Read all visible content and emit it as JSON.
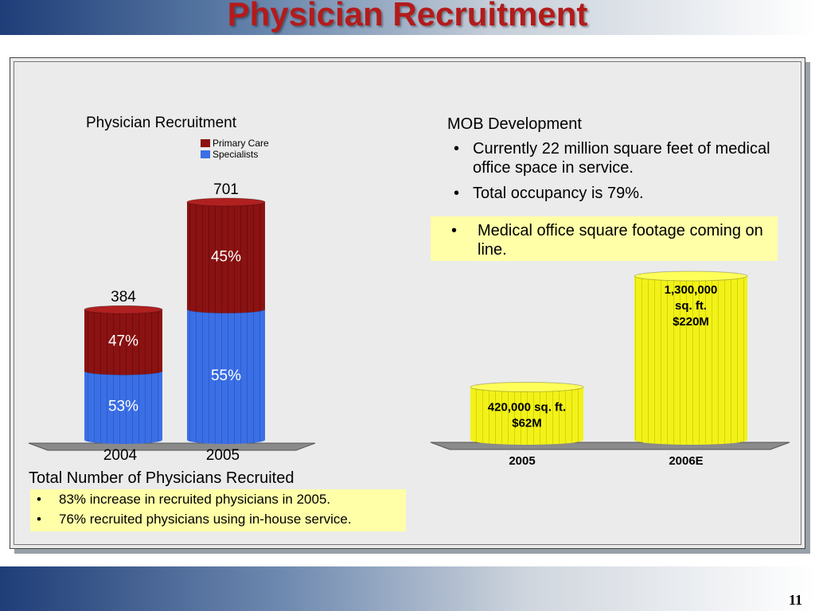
{
  "slide": {
    "title": "Physician Recruitment",
    "page_number": "11"
  },
  "left_chart": {
    "title": "Physician Recruitment",
    "legend": [
      {
        "label": "Primary Care",
        "color": "#8b1212"
      },
      {
        "label": "Specialists",
        "color": "#3b6fe6"
      }
    ],
    "total_label": "Total Number of Physicians Recruited",
    "bullets": [
      "83% increase in recruited physicians in 2005.",
      "76% recruited physicians using in-house service."
    ]
  },
  "right_panel": {
    "title": "MOB Development",
    "bullets": [
      "Currently 22 million square feet of medical office space in service.",
      "Total occupancy is 79%."
    ],
    "highlight_bullet": "Medical office square footage coming on line."
  },
  "chart_data": [
    {
      "type": "bar",
      "title": "Physician Recruitment",
      "categories": [
        "2004",
        "2005"
      ],
      "totals": [
        384,
        701
      ],
      "total_labels": [
        "384",
        "701"
      ],
      "series": [
        {
          "name": "Specialists",
          "values": [
            53,
            55
          ],
          "labels": [
            "53%",
            "55%"
          ],
          "color": "#3b6fe6"
        },
        {
          "name": "Primary Care",
          "values": [
            47,
            45
          ],
          "labels": [
            "47%",
            "45%"
          ],
          "color": "#8b1212"
        }
      ],
      "xlabel": "Total Number of Physicians Recruited",
      "ylim": [
        0,
        701
      ]
    },
    {
      "type": "bar",
      "categories": [
        "2005",
        "2006E"
      ],
      "values": [
        420000,
        1300000
      ],
      "labels": [
        [
          "420,000 sq. ft.",
          "$62M"
        ],
        [
          "1,300,000",
          "sq. ft.",
          "$220M"
        ]
      ],
      "color": "#ffff1a",
      "ylim": [
        0,
        1300000
      ]
    }
  ]
}
